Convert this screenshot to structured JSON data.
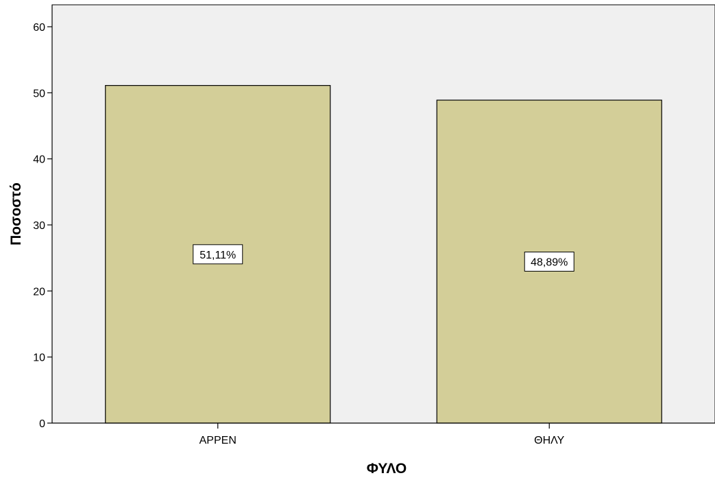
{
  "chart_data": {
    "type": "bar",
    "categories": [
      "ΑΡΡΕΝ",
      "ΘΗΛΥ"
    ],
    "values": [
      51.11,
      48.89
    ],
    "data_labels": [
      "51,11%",
      "48,89%"
    ],
    "xlabel": "ΦΥΛΟ",
    "ylabel": "Ποσοστό",
    "ylim": [
      0,
      60
    ],
    "yticks": [
      0,
      10,
      20,
      30,
      40,
      50,
      60
    ],
    "grid": false,
    "legend": "none",
    "colors": {
      "bar_fill": "#d3ce98",
      "plot_background": "#f0f0f0",
      "axis": "#000000"
    }
  }
}
